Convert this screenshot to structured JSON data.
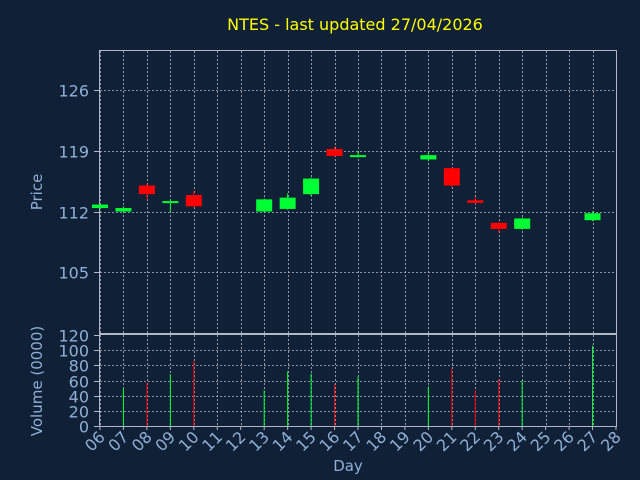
{
  "chart_data": {
    "type": "candlestick",
    "title": "NTES - last updated 27/04/2026",
    "xlabel": "Day",
    "price_panel": {
      "ylabel": "Price",
      "ylim": [
        98,
        130.5
      ],
      "yticks": [
        105,
        112,
        119,
        126
      ],
      "grid": true
    },
    "volume_panel": {
      "ylabel": "Volume (0000)",
      "ylim": [
        0,
        120
      ],
      "yticks": [
        0,
        20,
        40,
        60,
        80,
        100,
        120
      ],
      "grid": true
    },
    "days": [
      "06",
      "07",
      "08",
      "09",
      "10",
      "11",
      "12",
      "13",
      "14",
      "15",
      "16",
      "17",
      "18",
      "19",
      "20",
      "21",
      "22",
      "23",
      "24",
      "25",
      "26",
      "27",
      "28"
    ],
    "candles": [
      {
        "day": "06",
        "open": 112.4,
        "close": 112.8,
        "high": 112.9,
        "low": 112.3,
        "volume": 0
      },
      {
        "day": "07",
        "open": 112.0,
        "close": 112.4,
        "high": 112.6,
        "low": 111.8,
        "volume": 50
      },
      {
        "day": "08",
        "open": 115.0,
        "close": 114.0,
        "high": 115.2,
        "low": 113.4,
        "volume": 57
      },
      {
        "day": "09",
        "open": 113.0,
        "close": 113.2,
        "high": 113.4,
        "low": 112.0,
        "volume": 68
      },
      {
        "day": "10",
        "open": 113.9,
        "close": 112.6,
        "high": 114.4,
        "low": 112.5,
        "volume": 86
      },
      {
        "day": "13",
        "open": 112.0,
        "close": 113.4,
        "high": 113.5,
        "low": 111.9,
        "volume": 47
      },
      {
        "day": "14",
        "open": 112.3,
        "close": 113.6,
        "high": 114.1,
        "low": 112.2,
        "volume": 72
      },
      {
        "day": "15",
        "open": 114.0,
        "close": 115.8,
        "high": 115.9,
        "low": 113.8,
        "volume": 69
      },
      {
        "day": "16",
        "open": 119.2,
        "close": 118.4,
        "high": 119.5,
        "low": 118.3,
        "volume": 55
      },
      {
        "day": "17",
        "open": 118.3,
        "close": 118.5,
        "high": 119.0,
        "low": 118.2,
        "volume": 65
      },
      {
        "day": "20",
        "open": 118.0,
        "close": 118.5,
        "high": 118.8,
        "low": 117.8,
        "volume": 52
      },
      {
        "day": "21",
        "open": 117.0,
        "close": 115.0,
        "high": 117.1,
        "low": 114.8,
        "volume": 75
      },
      {
        "day": "22",
        "open": 113.3,
        "close": 113.0,
        "high": 113.7,
        "low": 112.9,
        "volume": 47
      },
      {
        "day": "23",
        "open": 110.7,
        "close": 110.0,
        "high": 110.8,
        "low": 109.6,
        "volume": 62
      },
      {
        "day": "24",
        "open": 110.0,
        "close": 111.2,
        "high": 111.3,
        "low": 109.9,
        "volume": 60
      },
      {
        "day": "27",
        "open": 111.0,
        "close": 111.8,
        "high": 112.0,
        "low": 110.9,
        "volume": 106
      }
    ],
    "colors": {
      "up": "#00ff33",
      "down": "#ff0000",
      "grid": "#b0b8c8",
      "text": "#8fb0d6",
      "title": "#ffff00",
      "background": "#102036"
    }
  }
}
